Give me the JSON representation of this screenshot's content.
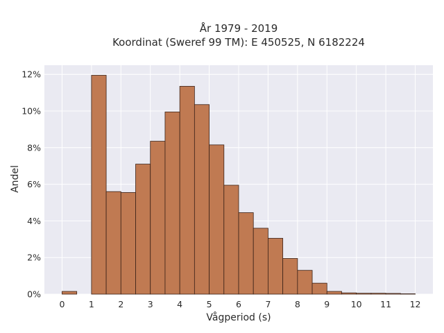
{
  "chart_data": {
    "type": "bar",
    "title_lines": [
      "År 1979 - 2019",
      "Koordinat (Sweref 99 TM): E 450525, N 6182224"
    ],
    "xlabel": "Vågperiod (s)",
    "ylabel": "Andel",
    "xlim": [
      -0.6,
      12.6
    ],
    "ylim": [
      0,
      12.5
    ],
    "x_ticks": [
      "0",
      "1",
      "2",
      "3",
      "4",
      "5",
      "6",
      "7",
      "8",
      "9",
      "10",
      "11",
      "12"
    ],
    "y_ticks": [
      "0%",
      "2%",
      "4%",
      "6%",
      "8%",
      "10%",
      "12%"
    ],
    "bin_width": 0.5,
    "bins": [
      {
        "start": 0.0,
        "value": 0.15
      },
      {
        "start": 1.0,
        "value": 11.95
      },
      {
        "start": 1.5,
        "value": 5.6
      },
      {
        "start": 2.0,
        "value": 5.55
      },
      {
        "start": 2.5,
        "value": 7.1
      },
      {
        "start": 3.0,
        "value": 8.35
      },
      {
        "start": 3.5,
        "value": 9.95
      },
      {
        "start": 4.0,
        "value": 11.35
      },
      {
        "start": 4.5,
        "value": 10.35
      },
      {
        "start": 5.0,
        "value": 8.15
      },
      {
        "start": 5.5,
        "value": 5.95
      },
      {
        "start": 6.0,
        "value": 4.45
      },
      {
        "start": 6.5,
        "value": 3.6
      },
      {
        "start": 7.0,
        "value": 3.05
      },
      {
        "start": 7.5,
        "value": 1.95
      },
      {
        "start": 8.0,
        "value": 1.3
      },
      {
        "start": 8.5,
        "value": 0.6
      },
      {
        "start": 9.0,
        "value": 0.15
      },
      {
        "start": 9.5,
        "value": 0.07
      },
      {
        "start": 10.0,
        "value": 0.05
      },
      {
        "start": 10.5,
        "value": 0.05
      },
      {
        "start": 11.0,
        "value": 0.04
      },
      {
        "start": 11.5,
        "value": 0.02
      }
    ],
    "bar_color": "#c07a52",
    "bar_edge_color": "#3a2218",
    "plot_background": "#eaeaf2",
    "grid": true,
    "grid_color": "#ffffff"
  }
}
